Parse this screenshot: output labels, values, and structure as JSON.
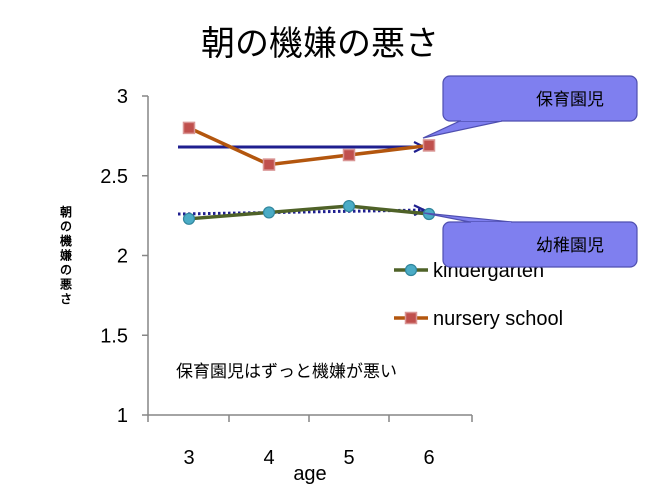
{
  "chart_data": {
    "type": "line",
    "title": "朝の機嫌の悪さ",
    "xlabel": "age",
    "ylabel": "朝の機嫌の悪さ",
    "categories": [
      "3",
      "4",
      "5",
      "6"
    ],
    "ylim": [
      1,
      3
    ],
    "yticks": [
      "1",
      "1.5",
      "2",
      "2.5",
      "3"
    ],
    "grid": false,
    "legend_position": "right",
    "series": [
      {
        "name": "kindergarten",
        "values": [
          2.23,
          2.27,
          2.31,
          2.26
        ],
        "color": "#4f6228",
        "marker_color": "#4bacc6",
        "marker": "circle",
        "trend": [
          2.26,
          2.285
        ],
        "trend_style": "dotted",
        "trend_color": "#1f1f8f"
      },
      {
        "name": "nursery school",
        "values": [
          2.8,
          2.57,
          2.63,
          2.69
        ],
        "color": "#c0504d",
        "line_color": "#b3560e",
        "marker": "square",
        "trend": [
          2.68,
          2.68
        ],
        "trend_style": "solid",
        "trend_color": "#1f1f8f"
      }
    ],
    "callouts": [
      {
        "text": "保育園児",
        "fill": "#7f7fef"
      },
      {
        "text": "幼稚園児",
        "fill": "#7f7fef"
      }
    ],
    "annotation": "保育園児はずっと機嫌が悪い"
  }
}
